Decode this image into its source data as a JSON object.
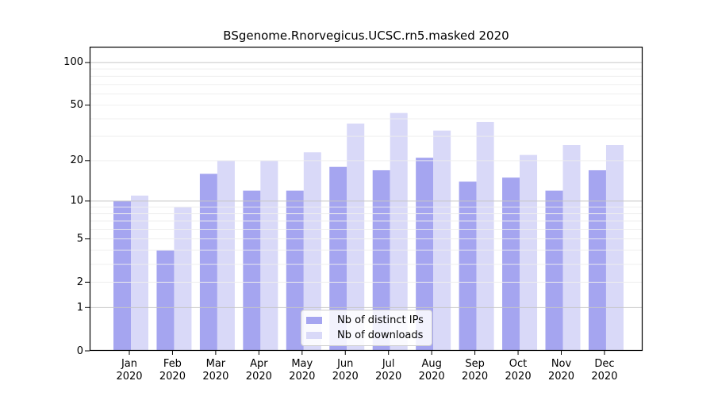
{
  "chart_data": {
    "type": "bar",
    "title": "BSgenome.Rnorvegicus.UCSC.rn5.masked 2020",
    "categories": [
      "Jan",
      "Feb",
      "Mar",
      "Apr",
      "May",
      "Jun",
      "Jul",
      "Aug",
      "Sep",
      "Oct",
      "Nov",
      "Dec"
    ],
    "category_year": "2020",
    "series": [
      {
        "name": "Nb of distinct IPs",
        "color": "#a5a5f0",
        "values": [
          10,
          4,
          16,
          12,
          12,
          18,
          17,
          21,
          14,
          15,
          12,
          17
        ]
      },
      {
        "name": "Nb of downloads",
        "color": "#d9d9f8",
        "values": [
          11,
          9,
          20,
          20,
          23,
          37,
          44,
          33,
          38,
          22,
          26,
          26
        ]
      }
    ],
    "yscale": "log1p",
    "ylim": [
      0,
      129
    ],
    "y_tick_labels": [
      "0",
      "1",
      "2",
      "5",
      "10",
      "20",
      "50",
      "100"
    ],
    "y_tick_values": [
      0,
      1,
      2,
      5,
      10,
      20,
      50,
      100
    ],
    "y_major_gridlines": [
      1,
      10,
      100
    ],
    "y_minor_gridlines": [
      2,
      3,
      4,
      5,
      6,
      7,
      8,
      9,
      20,
      30,
      40,
      50,
      60,
      70,
      80,
      90
    ],
    "grid": true,
    "legend_position": "lower center",
    "axis_color": "#000000",
    "major_grid_color": "#c6c6c6",
    "minor_grid_color": "#ededed"
  }
}
